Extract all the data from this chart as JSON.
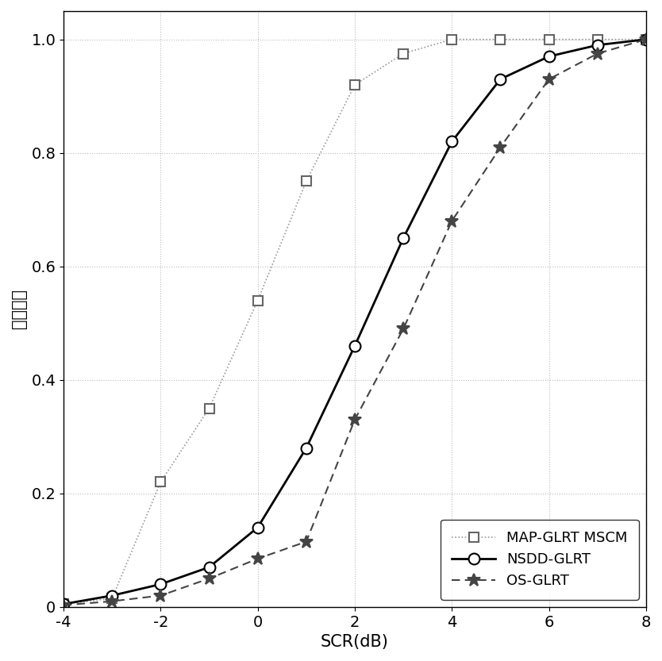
{
  "title": "",
  "xlabel": "SCR(dB)",
  "ylabel": "检测概率",
  "xlim": [
    -4,
    8
  ],
  "ylim": [
    0,
    1.05
  ],
  "xticks": [
    -4,
    -2,
    0,
    2,
    4,
    6,
    8
  ],
  "yticks": [
    0,
    0.2,
    0.4,
    0.6,
    0.8,
    1.0
  ],
  "series": [
    {
      "label": "MAP-GLRT MSCM",
      "x": [
        -4,
        -3,
        -2,
        -1,
        0,
        1,
        2,
        3,
        4,
        5,
        6,
        7,
        8
      ],
      "y": [
        0.005,
        0.015,
        0.22,
        0.35,
        0.54,
        0.75,
        0.92,
        0.975,
        1.0,
        1.0,
        1.0,
        1.0,
        1.0
      ],
      "color": "#999999",
      "linestyle": "dotted",
      "marker": "s",
      "markersize": 8,
      "linewidth": 1.2,
      "markerfacecolor": "white",
      "markeredgecolor": "#666666"
    },
    {
      "label": "NSDD-GLRT",
      "x": [
        -4,
        -3,
        -2,
        -1,
        0,
        1,
        2,
        3,
        4,
        5,
        6,
        7,
        8
      ],
      "y": [
        0.005,
        0.02,
        0.04,
        0.07,
        0.14,
        0.28,
        0.46,
        0.65,
        0.82,
        0.93,
        0.97,
        0.99,
        1.0
      ],
      "color": "#000000",
      "linestyle": "solid",
      "marker": "o",
      "markersize": 10,
      "linewidth": 2.0,
      "markerfacecolor": "white",
      "markeredgecolor": "#000000"
    },
    {
      "label": "OS-GLRT",
      "x": [
        -4,
        -3,
        -2,
        -1,
        0,
        1,
        2,
        3,
        4,
        5,
        6,
        7,
        8
      ],
      "y": [
        0.003,
        0.01,
        0.02,
        0.05,
        0.085,
        0.115,
        0.33,
        0.49,
        0.68,
        0.81,
        0.93,
        0.975,
        1.0
      ],
      "color": "#444444",
      "linestyle": "dashed",
      "marker": "*",
      "markersize": 12,
      "linewidth": 1.5,
      "markerfacecolor": "#444444",
      "markeredgecolor": "#444444"
    }
  ],
  "legend_loc": "lower right",
  "grid_color": "#bbbbbb",
  "grid_linestyle": "dotted",
  "background_color": "#ffffff",
  "label_fontsize": 15,
  "tick_fontsize": 14,
  "legend_fontsize": 13
}
